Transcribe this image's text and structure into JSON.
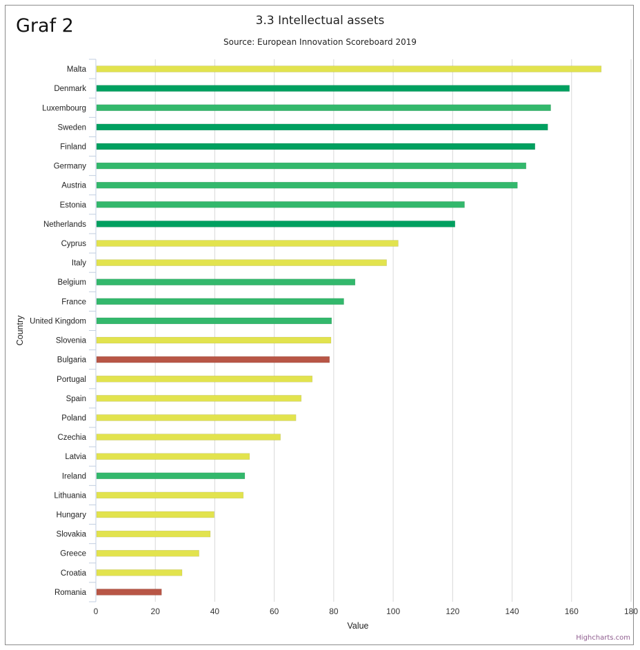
{
  "page": {
    "label": "Graf 2",
    "credits": "Highcharts.com"
  },
  "chart_data": {
    "type": "bar",
    "orientation": "horizontal",
    "title": "3.3 Intellectual assets",
    "subtitle": "Source: European Innovation Scoreboard 2019",
    "xlabel": "Country",
    "ylabel": "Value",
    "xlim": [
      0,
      180
    ],
    "ticks": [
      0,
      20,
      40,
      60,
      80,
      100,
      120,
      140,
      160,
      180
    ],
    "grid": true,
    "legend": "none",
    "colors": {
      "innovation_leader": "#00a060",
      "strong_innovator": "#33b86c",
      "moderate_innovator": "#e2e34e",
      "modest_innovator": "#b85646"
    },
    "categories": [
      "Malta",
      "Denmark",
      "Luxembourg",
      "Sweden",
      "Finland",
      "Germany",
      "Austria",
      "Estonia",
      "Netherlands",
      "Cyprus",
      "Italy",
      "Belgium",
      "France",
      "United Kingdom",
      "Slovenia",
      "Bulgaria",
      "Portugal",
      "Spain",
      "Poland",
      "Czechia",
      "Latvia",
      "Ireland",
      "Lithuania",
      "Hungary",
      "Slovakia",
      "Greece",
      "Croatia",
      "Romania"
    ],
    "values": [
      170,
      159.3,
      153,
      152,
      147.7,
      144.7,
      141.8,
      124,
      120.8,
      101.7,
      97.8,
      87.2,
      83.4,
      79.3,
      79.1,
      78.6,
      72.8,
      69.1,
      67.3,
      62.1,
      51.7,
      50.1,
      49.6,
      39.8,
      38.5,
      34.7,
      29,
      22.1
    ],
    "bar_groups": [
      "moderate_innovator",
      "innovation_leader",
      "strong_innovator",
      "innovation_leader",
      "innovation_leader",
      "strong_innovator",
      "strong_innovator",
      "strong_innovator",
      "innovation_leader",
      "moderate_innovator",
      "moderate_innovator",
      "strong_innovator",
      "strong_innovator",
      "strong_innovator",
      "moderate_innovator",
      "modest_innovator",
      "moderate_innovator",
      "moderate_innovator",
      "moderate_innovator",
      "moderate_innovator",
      "moderate_innovator",
      "strong_innovator",
      "moderate_innovator",
      "moderate_innovator",
      "moderate_innovator",
      "moderate_innovator",
      "moderate_innovator",
      "modest_innovator"
    ]
  }
}
